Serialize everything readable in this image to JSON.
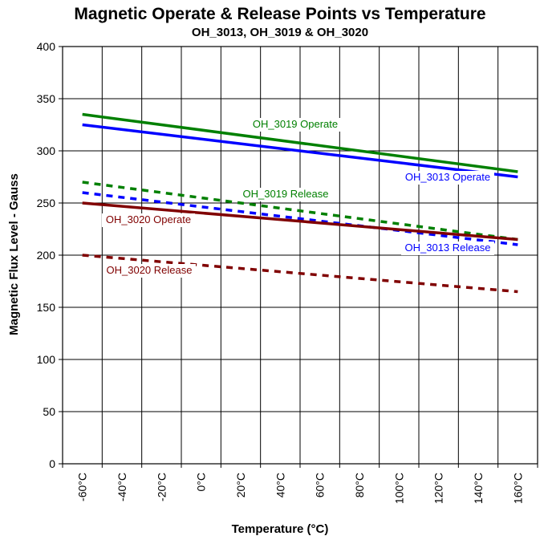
{
  "chart_data": {
    "type": "line",
    "title": "Magnetic Operate & Release Points vs Temperature",
    "subtitle": "OH_3013, OH_3019 & OH_3020",
    "xlabel": "Temperature (°C)",
    "ylabel": "Magnetic Flux Level - Gauss",
    "x": [
      -60,
      -40,
      -20,
      0,
      20,
      40,
      60,
      80,
      100,
      120,
      140,
      160
    ],
    "x_tick_labels": [
      "-60°C",
      "-40°C",
      "-20°C",
      "0°C",
      "20°C",
      "40°C",
      "60°C",
      "80°C",
      "100°C",
      "120°C",
      "140°C",
      "160°C"
    ],
    "xlim": [
      -70,
      170
    ],
    "ylim": [
      0,
      400
    ],
    "y_ticks": [
      0,
      50,
      100,
      150,
      200,
      250,
      300,
      350,
      400
    ],
    "grid": true,
    "legend": "inline labels",
    "series": [
      {
        "name": "OH_3019 Operate",
        "x": [
          -60,
          160
        ],
        "y": [
          335,
          280
        ],
        "color": "#008000",
        "style": "solid"
      },
      {
        "name": "OH_3013 Operate",
        "x": [
          -60,
          160
        ],
        "y": [
          325,
          275
        ],
        "color": "#0000ff",
        "style": "solid"
      },
      {
        "name": "OH_3019 Release",
        "x": [
          -60,
          160
        ],
        "y": [
          270,
          215
        ],
        "color": "#008000",
        "style": "dashed"
      },
      {
        "name": "OH_3013 Release",
        "x": [
          -60,
          160
        ],
        "y": [
          260,
          210
        ],
        "color": "#0000ff",
        "style": "dashed"
      },
      {
        "name": "OH_3020 Operate",
        "x": [
          -60,
          160
        ],
        "y": [
          250,
          215
        ],
        "color": "#800000",
        "style": "solid"
      },
      {
        "name": "OH_3020 Release",
        "x": [
          -60,
          160
        ],
        "y": [
          200,
          165
        ],
        "color": "#800000",
        "style": "dashed"
      }
    ]
  }
}
